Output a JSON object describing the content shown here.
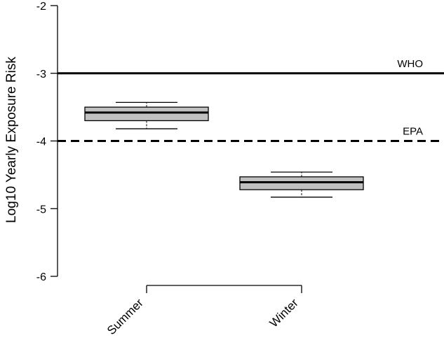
{
  "chart_data": {
    "type": "box",
    "ylabel": "Log10 Yearly Exposure Risk",
    "ylim": [
      -6.0,
      -2.0
    ],
    "yticks": [
      -2,
      -3,
      -4,
      -5,
      -6
    ],
    "ytick_labels": [
      "-2",
      "-3",
      "-4",
      "-5",
      "-6"
    ],
    "categories": [
      "Summer",
      "Winter"
    ],
    "boxes": [
      {
        "category": "Summer",
        "whisker_low": -3.82,
        "q1": -3.7,
        "median": -3.58,
        "q3": -3.5,
        "whisker_high": -3.43
      },
      {
        "category": "Winter",
        "whisker_low": -4.83,
        "q1": -4.72,
        "median": -4.61,
        "q3": -4.53,
        "whisker_high": -4.46
      }
    ],
    "reference_lines": [
      {
        "label": "WHO",
        "value": -3.0,
        "style": "solid"
      },
      {
        "label": "EPA",
        "value": -4.0,
        "style": "dashed"
      }
    ],
    "grid": false,
    "box_fill": "#c0c0c0",
    "line_color": "#000000"
  }
}
